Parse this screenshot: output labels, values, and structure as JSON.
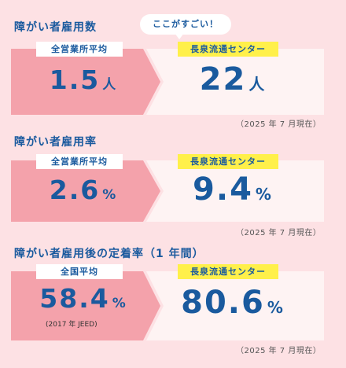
{
  "speech_bubble": "ここがすごい！",
  "sections": [
    {
      "title": "障がい者雇用数",
      "left_label": "全営業所平均",
      "left_value": "1.5",
      "left_unit": "人",
      "right_label": "長泉流通センター",
      "right_value": "22",
      "right_unit": "人",
      "date_note": "（2025 年 7 月現在）"
    },
    {
      "title": "障がい者雇用率",
      "left_label": "全営業所平均",
      "left_value": "2.6",
      "left_unit": "%",
      "right_label": "長泉流通センター",
      "right_value": "9.4",
      "right_unit": "%",
      "date_note": "（2025 年 7 月現在）"
    },
    {
      "title": "障がい者雇用後の定着率（1 年間）",
      "left_label": "全国平均",
      "left_value": "58.4",
      "left_unit": "%",
      "left_source": "(2017 年 JEED)",
      "right_label": "長泉流通センター",
      "right_value": "80.6",
      "right_unit": "%",
      "date_note": "（2025 年 7 月現在）"
    }
  ]
}
